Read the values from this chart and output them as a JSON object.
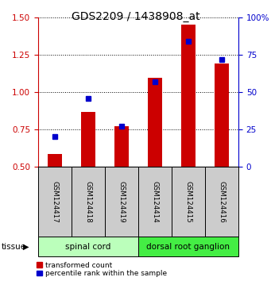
{
  "title": "GDS2209 / 1438908_at",
  "samples": [
    "GSM124417",
    "GSM124418",
    "GSM124419",
    "GSM124414",
    "GSM124415",
    "GSM124416"
  ],
  "red_values": [
    0.585,
    0.865,
    0.77,
    1.095,
    1.45,
    1.19
  ],
  "blue_percentiles": [
    20,
    46,
    27,
    57,
    84,
    72
  ],
  "ylim": [
    0.5,
    1.5
  ],
  "yticks": [
    0.5,
    0.75,
    1.0,
    1.25,
    1.5
  ],
  "right_yticks": [
    0,
    25,
    50,
    75,
    100
  ],
  "red_color": "#cc0000",
  "blue_color": "#0000cc",
  "bar_width": 0.45,
  "groups": [
    {
      "label": "spinal cord",
      "indices": [
        0,
        1,
        2
      ],
      "color": "#bbffbb"
    },
    {
      "label": "dorsal root ganglion",
      "indices": [
        3,
        4,
        5
      ],
      "color": "#44ee44"
    }
  ],
  "tissue_label": "tissue",
  "legend_red": "transformed count",
  "legend_blue": "percentile rank within the sample",
  "background_color": "#ffffff",
  "plot_bg": "#ffffff",
  "sample_box_color": "#cccccc",
  "title_fontsize": 10,
  "tick_fontsize": 7.5,
  "label_fontsize": 7.5
}
